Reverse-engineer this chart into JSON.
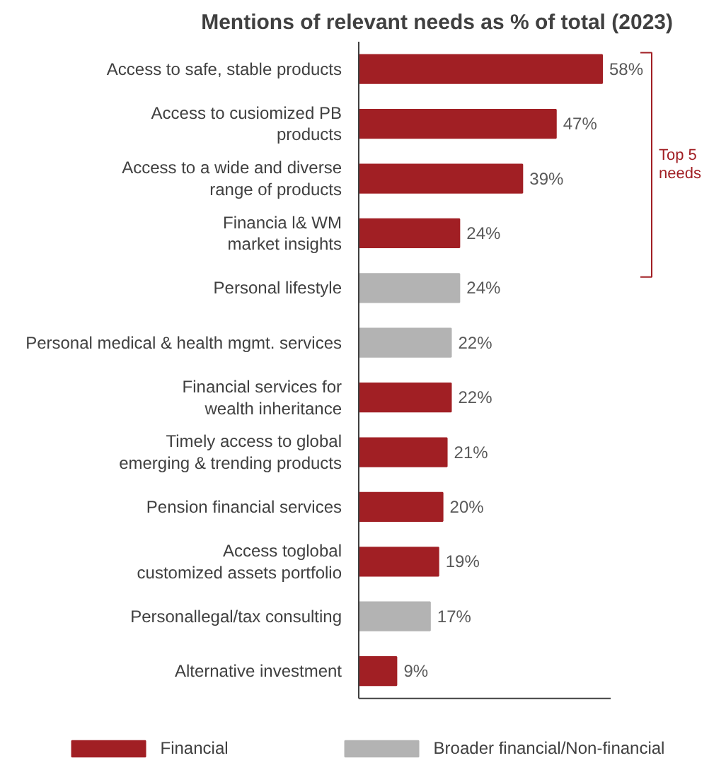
{
  "chart_data": {
    "type": "bar",
    "orientation": "horizontal",
    "title": "Mentions of relevant needs as % of total (2023)",
    "categories": [
      "Access to safe, stable products",
      "Access to cusiomized PB\nproducts",
      "Access to a wide and diverse\nrange of products",
      "Financia l& WM\nmarket insights",
      "Personal lifestyle",
      "Personal medical & health mgmt. services",
      "Financial services for\nwealth inheritance",
      "Timely access to global\nemerging & trending products",
      "Pension financial services",
      "Access toglobal\ncustomized assets portfolio",
      "Personallegal/tax consulting",
      "Alternative investment"
    ],
    "series": [
      {
        "name": "Financial",
        "color": "#a11f24",
        "values": [
          58,
          47,
          39,
          24,
          null,
          null,
          22,
          21,
          20,
          19,
          null,
          9
        ],
        "value_labels": [
          "58%",
          "47%",
          "39%",
          "24%",
          null,
          null,
          "22%",
          "21%",
          "20%",
          "19%",
          null,
          "9%"
        ]
      },
      {
        "name": "Broader financial/Non-financial",
        "color": "#b3b3b3",
        "values": [
          null,
          null,
          null,
          null,
          24,
          22,
          null,
          null,
          null,
          null,
          17,
          null
        ],
        "value_labels": [
          null,
          null,
          null,
          null,
          "24%",
          "22%",
          null,
          null,
          null,
          null,
          "17%",
          null
        ]
      }
    ],
    "legend": "bottom",
    "annotations": [
      "Top 5\nneeds"
    ]
  }
}
